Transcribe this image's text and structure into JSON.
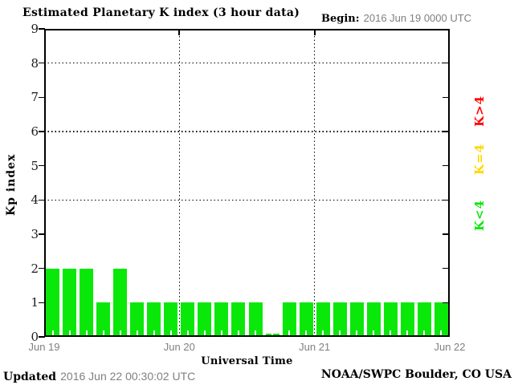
{
  "title": "Estimated Planetary K index (3 hour data)",
  "begin": {
    "label": "Begin:",
    "value": "2016 Jun 19 0000 UTC"
  },
  "y_axis": {
    "label": "Kp index",
    "ticks": [
      "0",
      "1",
      "2",
      "3",
      "4",
      "5",
      "6",
      "7",
      "8",
      "9"
    ]
  },
  "x_axis": {
    "label": "Universal Time",
    "ticks": [
      "Jun 19",
      "Jun 20",
      "Jun 21",
      "Jun 22"
    ]
  },
  "legend": [
    {
      "label": "K>4",
      "color": "#ff0000"
    },
    {
      "label": "K=4",
      "color": "#ffd700"
    },
    {
      "label": "K<4",
      "color": "#0ae80a"
    }
  ],
  "footer": {
    "updated_label": "Updated",
    "updated_value": "2016 Jun 22 00:30:02 UTC",
    "source": "NOAA/SWPC Boulder, CO USA"
  },
  "chart_data": {
    "type": "bar",
    "title": "Estimated Planetary K index (3 hour data)",
    "xlabel": "Universal Time",
    "ylabel": "Kp index",
    "ylim": [
      0,
      9
    ],
    "y_ticks": [
      0,
      1,
      2,
      3,
      4,
      5,
      6,
      7,
      8,
      9
    ],
    "dotted_gridlines_y": [
      4,
      6,
      8
    ],
    "x_day_labels": [
      "Jun 19",
      "Jun 20",
      "Jun 21",
      "Jun 22"
    ],
    "begin_utc": "2016 Jun 19 0000 UTC",
    "interval_hours": 3,
    "bars_per_day": 8,
    "values": [
      2,
      2,
      2,
      1,
      2,
      1,
      1,
      1,
      1,
      1,
      1,
      1,
      1,
      0,
      1,
      1,
      1,
      1,
      1,
      1,
      1,
      1,
      1,
      1
    ],
    "color_below_4": "#0ae80a",
    "color_equal_4": "#ffd700",
    "color_above_4": "#ff0000",
    "legend_position": "right",
    "grid": "dotted"
  }
}
